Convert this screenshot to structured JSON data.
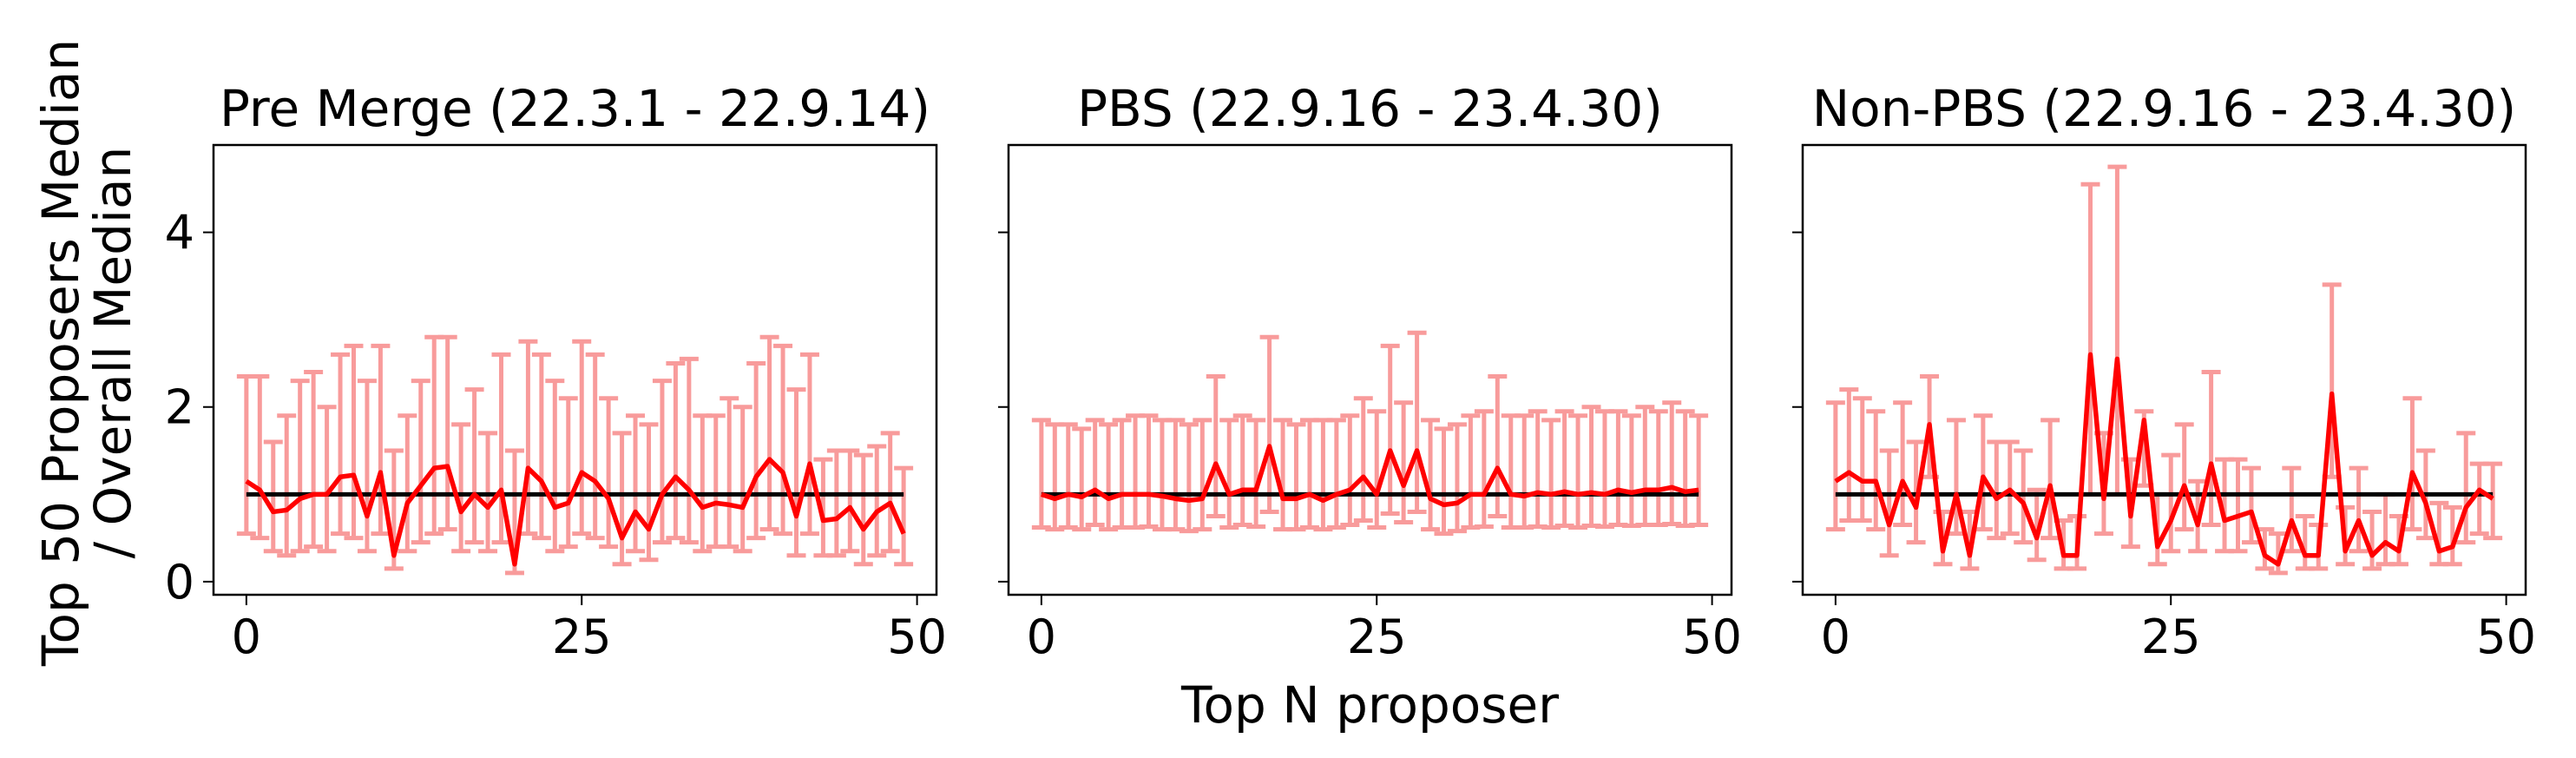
{
  "chart_data": [
    {
      "type": "errorbar",
      "title": "Pre Merge (22.3.1 - 22.9.14)",
      "ylabel": [
        "Top 50 Proposers Median",
        "/ Overall Median"
      ],
      "x": [
        0,
        1,
        2,
        3,
        4,
        5,
        6,
        7,
        8,
        9,
        10,
        11,
        12,
        13,
        14,
        15,
        16,
        17,
        18,
        19,
        20,
        21,
        22,
        23,
        24,
        25,
        26,
        27,
        28,
        29,
        30,
        31,
        32,
        33,
        34,
        35,
        36,
        37,
        38,
        39,
        40,
        41,
        42,
        43,
        44,
        45,
        46,
        47,
        48,
        49
      ],
      "values": [
        1.15,
        1.05,
        0.8,
        0.82,
        0.95,
        1.0,
        1.0,
        1.2,
        1.22,
        0.75,
        1.25,
        0.3,
        0.9,
        1.1,
        1.3,
        1.32,
        0.8,
        1.0,
        0.85,
        1.05,
        0.2,
        1.3,
        1.15,
        0.85,
        0.9,
        1.25,
        1.15,
        0.95,
        0.5,
        0.8,
        0.6,
        1.0,
        1.2,
        1.05,
        0.85,
        0.9,
        0.88,
        0.85,
        1.2,
        1.4,
        1.25,
        0.75,
        1.35,
        0.7,
        0.72,
        0.85,
        0.6,
        0.8,
        0.9,
        0.55
      ],
      "lower": [
        0.55,
        0.5,
        0.35,
        0.3,
        0.35,
        0.4,
        0.35,
        0.55,
        0.5,
        0.35,
        0.55,
        0.15,
        0.35,
        0.45,
        0.55,
        0.6,
        0.35,
        0.45,
        0.35,
        0.45,
        0.1,
        0.55,
        0.5,
        0.35,
        0.4,
        0.55,
        0.5,
        0.4,
        0.2,
        0.35,
        0.25,
        0.45,
        0.5,
        0.45,
        0.35,
        0.4,
        0.4,
        0.35,
        0.5,
        0.6,
        0.55,
        0.3,
        0.55,
        0.3,
        0.3,
        0.35,
        0.2,
        0.3,
        0.35,
        0.2
      ],
      "upper": [
        2.35,
        2.35,
        1.6,
        1.9,
        2.3,
        2.4,
        2.0,
        2.6,
        2.7,
        2.3,
        2.7,
        1.5,
        1.9,
        2.3,
        2.8,
        2.8,
        1.8,
        2.2,
        1.7,
        2.6,
        1.5,
        2.75,
        2.6,
        2.3,
        2.1,
        2.75,
        2.6,
        2.1,
        1.7,
        1.9,
        1.8,
        2.3,
        2.5,
        2.55,
        1.9,
        1.9,
        2.1,
        2.0,
        2.5,
        2.8,
        2.7,
        2.2,
        2.6,
        1.4,
        1.5,
        1.5,
        1.45,
        1.55,
        1.7,
        1.3
      ],
      "color": "#ff0000",
      "error_color": "#f89b9b",
      "reference": 1,
      "reference_color": "#000000",
      "xlim": [
        -2.45,
        51.45
      ],
      "ylim": [
        -0.15,
        5.0
      ],
      "xticks": [
        0,
        25,
        50
      ],
      "yticks": [
        0,
        2,
        4
      ],
      "yticklabels": true
    },
    {
      "type": "errorbar",
      "title": "PBS (22.9.16 - 23.4.30)",
      "xlabel": "Top N proposer",
      "x": [
        0,
        1,
        2,
        3,
        4,
        5,
        6,
        7,
        8,
        9,
        10,
        11,
        12,
        13,
        14,
        15,
        16,
        17,
        18,
        19,
        20,
        21,
        22,
        23,
        24,
        25,
        26,
        27,
        28,
        29,
        30,
        31,
        32,
        33,
        34,
        35,
        36,
        37,
        38,
        39,
        40,
        41,
        42,
        43,
        44,
        45,
        46,
        47,
        48,
        49
      ],
      "values": [
        1.0,
        0.95,
        1.0,
        0.97,
        1.05,
        0.95,
        1.0,
        1.0,
        1.0,
        0.98,
        0.95,
        0.93,
        0.95,
        1.35,
        1.0,
        1.05,
        1.05,
        1.55,
        0.95,
        0.95,
        1.0,
        0.93,
        1.0,
        1.05,
        1.2,
        1.0,
        1.5,
        1.1,
        1.5,
        0.95,
        0.88,
        0.9,
        1.0,
        1.0,
        1.3,
        1.0,
        0.98,
        1.02,
        1.0,
        1.03,
        1.0,
        1.02,
        1.0,
        1.05,
        1.02,
        1.05,
        1.05,
        1.08,
        1.03,
        1.05
      ],
      "lower": [
        0.62,
        0.6,
        0.62,
        0.6,
        0.65,
        0.6,
        0.62,
        0.62,
        0.63,
        0.6,
        0.6,
        0.58,
        0.6,
        0.75,
        0.62,
        0.65,
        0.63,
        0.8,
        0.6,
        0.6,
        0.62,
        0.6,
        0.62,
        0.65,
        0.7,
        0.62,
        0.78,
        0.68,
        0.8,
        0.6,
        0.55,
        0.58,
        0.62,
        0.63,
        0.75,
        0.62,
        0.62,
        0.63,
        0.62,
        0.64,
        0.62,
        0.64,
        0.63,
        0.65,
        0.64,
        0.65,
        0.65,
        0.66,
        0.64,
        0.65
      ],
      "upper": [
        1.85,
        1.8,
        1.8,
        1.75,
        1.85,
        1.8,
        1.85,
        1.9,
        1.9,
        1.85,
        1.85,
        1.8,
        1.85,
        2.35,
        1.85,
        1.9,
        1.85,
        2.8,
        1.85,
        1.8,
        1.85,
        1.85,
        1.85,
        1.9,
        2.1,
        1.95,
        2.7,
        2.05,
        2.85,
        1.85,
        1.75,
        1.8,
        1.9,
        1.95,
        2.35,
        1.9,
        1.9,
        1.95,
        1.85,
        1.95,
        1.9,
        2.0,
        1.95,
        1.95,
        1.9,
        2.0,
        1.95,
        2.05,
        1.95,
        1.9
      ],
      "color": "#ff0000",
      "error_color": "#f89b9b",
      "reference": 1,
      "reference_color": "#000000",
      "xlim": [
        -2.45,
        51.45
      ],
      "ylim": [
        -0.15,
        5.0
      ],
      "xticks": [
        0,
        25,
        50
      ],
      "yticks": [
        0,
        2,
        4
      ],
      "yticklabels": false
    },
    {
      "type": "errorbar",
      "title": "Non-PBS (22.9.16 - 23.4.30)",
      "x": [
        0,
        1,
        2,
        3,
        4,
        5,
        6,
        7,
        8,
        9,
        10,
        11,
        12,
        13,
        14,
        15,
        16,
        17,
        18,
        19,
        20,
        21,
        22,
        23,
        24,
        25,
        26,
        27,
        28,
        29,
        30,
        31,
        32,
        33,
        34,
        35,
        36,
        37,
        38,
        39,
        40,
        41,
        42,
        43,
        44,
        45,
        46,
        47,
        48,
        49
      ],
      "values": [
        1.15,
        1.25,
        1.15,
        1.15,
        0.65,
        1.15,
        0.85,
        1.8,
        0.35,
        1.0,
        0.3,
        1.2,
        0.95,
        1.05,
        0.9,
        0.5,
        1.1,
        0.3,
        0.3,
        2.6,
        0.95,
        2.55,
        0.75,
        1.85,
        0.4,
        0.7,
        1.1,
        0.65,
        1.35,
        0.7,
        0.75,
        0.8,
        0.3,
        0.2,
        0.7,
        0.3,
        0.3,
        2.15,
        0.35,
        0.7,
        0.3,
        0.45,
        0.35,
        1.25,
        0.9,
        0.35,
        0.4,
        0.85,
        1.05,
        0.95
      ],
      "lower": [
        0.6,
        0.7,
        0.7,
        0.6,
        0.3,
        0.65,
        0.45,
        1.2,
        0.2,
        0.55,
        0.15,
        0.6,
        0.5,
        0.55,
        0.45,
        0.25,
        0.5,
        0.15,
        0.15,
        1.0,
        0.55,
        1.0,
        0.4,
        1.1,
        0.2,
        0.35,
        0.6,
        0.35,
        0.65,
        0.35,
        0.35,
        0.45,
        0.15,
        0.1,
        0.35,
        0.15,
        0.15,
        1.2,
        0.2,
        0.35,
        0.15,
        0.2,
        0.2,
        0.6,
        0.5,
        0.2,
        0.2,
        0.45,
        0.55,
        0.5
      ],
      "upper": [
        2.05,
        2.2,
        2.1,
        1.95,
        1.5,
        2.05,
        1.6,
        2.35,
        0.8,
        1.85,
        0.8,
        1.9,
        1.6,
        1.6,
        1.5,
        1.05,
        1.85,
        0.7,
        0.75,
        4.55,
        1.7,
        4.75,
        1.4,
        1.95,
        1.0,
        1.45,
        1.8,
        1.15,
        2.4,
        1.4,
        1.4,
        1.3,
        0.6,
        0.55,
        1.3,
        0.75,
        0.65,
        3.4,
        0.85,
        1.3,
        0.8,
        1.0,
        0.75,
        2.1,
        1.5,
        0.9,
        0.85,
        1.7,
        1.35,
        1.35
      ],
      "color": "#ff0000",
      "error_color": "#f89b9b",
      "reference": 1,
      "reference_color": "#000000",
      "xlim": [
        -2.45,
        51.45
      ],
      "ylim": [
        -0.15,
        5.0
      ],
      "xticks": [
        0,
        25,
        50
      ],
      "yticks": [
        0,
        2,
        4
      ],
      "yticklabels": false
    }
  ]
}
